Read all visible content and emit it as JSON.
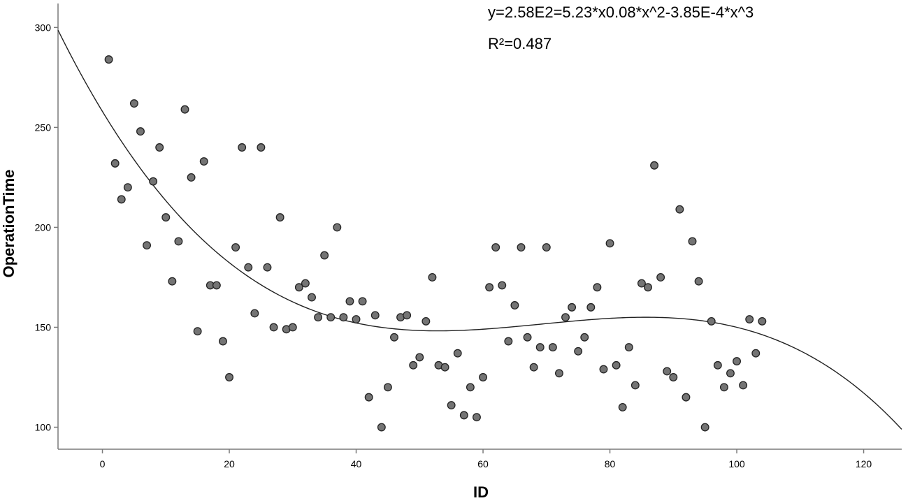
{
  "chart_data": {
    "type": "scatter",
    "title": "",
    "xlabel": "ID",
    "ylabel": "OperationTime",
    "xlim": [
      -7,
      126
    ],
    "ylim": [
      89,
      312
    ],
    "x_ticks": [
      0,
      20,
      40,
      60,
      80,
      100,
      120
    ],
    "y_ticks": [
      100,
      150,
      200,
      250,
      300
    ],
    "grid": false,
    "annotations": [
      "y=2.58E2=5.23*x0.08*x^2-3.85E-4*x^3",
      "R²=0.487"
    ],
    "fit_line": {
      "type": "cubic",
      "coefficients": [
        258,
        -5.23,
        0.08,
        -0.000385
      ],
      "domain": [
        -7,
        126
      ]
    },
    "series": [
      {
        "points": [
          [
            1,
            284
          ],
          [
            2,
            232
          ],
          [
            3,
            214
          ],
          [
            4,
            220
          ],
          [
            5,
            262
          ],
          [
            6,
            248
          ],
          [
            7,
            191
          ],
          [
            8,
            223
          ],
          [
            9,
            240
          ],
          [
            10,
            205
          ],
          [
            11,
            173
          ],
          [
            12,
            193
          ],
          [
            13,
            259
          ],
          [
            14,
            225
          ],
          [
            15,
            148
          ],
          [
            16,
            233
          ],
          [
            17,
            171
          ],
          [
            18,
            171
          ],
          [
            19,
            143
          ],
          [
            20,
            125
          ],
          [
            21,
            190
          ],
          [
            22,
            240
          ],
          [
            23,
            180
          ],
          [
            24,
            157
          ],
          [
            25,
            240
          ],
          [
            26,
            180
          ],
          [
            27,
            150
          ],
          [
            28,
            205
          ],
          [
            29,
            149
          ],
          [
            30,
            150
          ],
          [
            31,
            170
          ],
          [
            32,
            172
          ],
          [
            33,
            165
          ],
          [
            34,
            155
          ],
          [
            35,
            186
          ],
          [
            36,
            155
          ],
          [
            37,
            200
          ],
          [
            38,
            155
          ],
          [
            39,
            163
          ],
          [
            40,
            154
          ],
          [
            41,
            163
          ],
          [
            42,
            115
          ],
          [
            43,
            156
          ],
          [
            44,
            100
          ],
          [
            45,
            120
          ],
          [
            46,
            145
          ],
          [
            47,
            155
          ],
          [
            48,
            156
          ],
          [
            49,
            131
          ],
          [
            50,
            135
          ],
          [
            51,
            153
          ],
          [
            52,
            175
          ],
          [
            53,
            131
          ],
          [
            54,
            130
          ],
          [
            55,
            111
          ],
          [
            56,
            137
          ],
          [
            57,
            106
          ],
          [
            58,
            120
          ],
          [
            59,
            105
          ],
          [
            60,
            125
          ],
          [
            61,
            170
          ],
          [
            62,
            190
          ],
          [
            63,
            171
          ],
          [
            64,
            143
          ],
          [
            65,
            161
          ],
          [
            66,
            190
          ],
          [
            67,
            145
          ],
          [
            68,
            130
          ],
          [
            69,
            140
          ],
          [
            70,
            190
          ],
          [
            71,
            140
          ],
          [
            72,
            127
          ],
          [
            73,
            155
          ],
          [
            74,
            160
          ],
          [
            75,
            138
          ],
          [
            76,
            145
          ],
          [
            77,
            160
          ],
          [
            78,
            170
          ],
          [
            79,
            129
          ],
          [
            80,
            192
          ],
          [
            81,
            131
          ],
          [
            82,
            110
          ],
          [
            83,
            140
          ],
          [
            84,
            121
          ],
          [
            85,
            172
          ],
          [
            86,
            170
          ],
          [
            87,
            231
          ],
          [
            88,
            175
          ],
          [
            89,
            128
          ],
          [
            90,
            125
          ],
          [
            91,
            209
          ],
          [
            92,
            115
          ],
          [
            93,
            193
          ],
          [
            94,
            173
          ],
          [
            95,
            100
          ],
          [
            96,
            153
          ],
          [
            97,
            131
          ],
          [
            98,
            120
          ],
          [
            99,
            127
          ],
          [
            100,
            133
          ],
          [
            101,
            121
          ],
          [
            102,
            154
          ],
          [
            103,
            137
          ],
          [
            104,
            153
          ]
        ]
      }
    ]
  }
}
